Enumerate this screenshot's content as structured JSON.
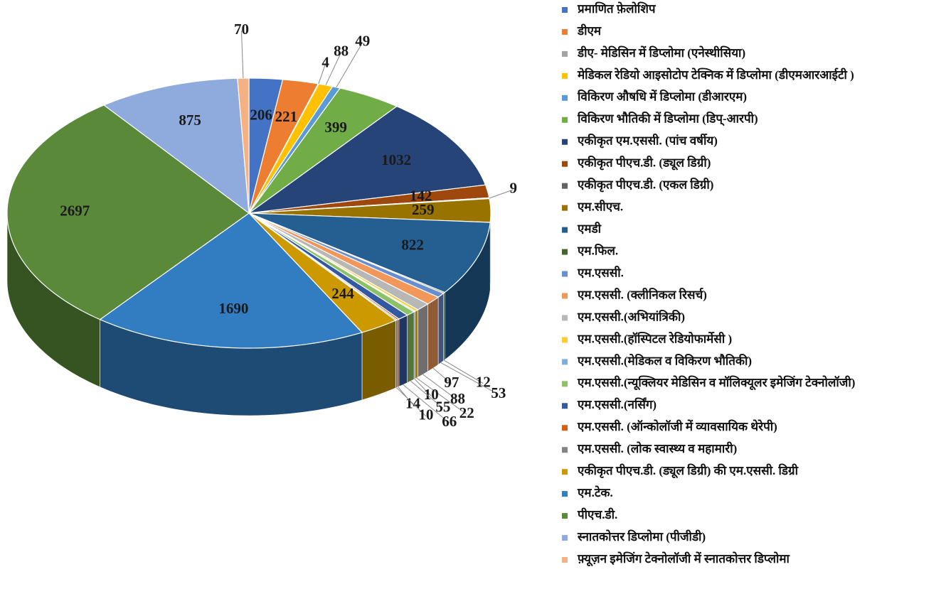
{
  "chart_data": {
    "type": "pie",
    "categories": [
      "प्रमाणित फ़ेलोशिप",
      "डीएम",
      "डीए- मेडिसिन में डिप्लोमा (एनेस्थीसिया)",
      "मेडिकल रेडियो आइसोटोप टेक्निक में डिप्लोमा (डीएमआरआईटी )",
      "विकिरण औषधि में डिप्लोमा (डीआरएम)",
      "विकिरण भौतिकी में डिप्लोमा (डिप्-आरपी)",
      "एकीकृत एम.एससी. (पांच वर्षीय)",
      "एकीकृत पीएच.डी. (ड्यूल डिग्री)",
      "एकीकृत पीएच.डी. (एकल डिग्री)",
      "एम.सीएच.",
      "एमडी",
      "एम.फिल.",
      "एम.एससी.",
      "एम.एससी. (क्लीनिकल रिसर्च)",
      "एम.एससी.(अभियांत्रिकी)",
      "एम.एससी.(हॉस्पिटल रेडियोफार्मेसी )",
      "एम.एससी.(मेडिकल व विकिरण भौतिकी)",
      "एम.एससी.(न्यूक्लियर मेडिसिन व मॉलिक्यूलर इमेजिंग टेक्नोलॉजी)",
      "एम.एससी.(नर्सिंग)",
      "एम.एससी. (ऑन्कोलॉजी में व्यावसायिक थेरेपी)",
      "एम.एससी. (लोक स्वास्थ्य व महामारी)",
      "एकीकृत पीएच.डी. (ड्यूल डिग्री) की एम.एससी. डिग्री",
      "एम.टेक.",
      "पीएच.डी.",
      "स्नातकोत्तर डिप्लोमा (पीजीडी)",
      "फ़्यूज़न इमेजिंग टेक्नोलॉजी में स्नातकोत्तर डिप्लोमा"
    ],
    "values": [
      206,
      221,
      4,
      88,
      49,
      399,
      1032,
      142,
      9,
      259,
      822,
      12,
      53,
      97,
      88,
      22,
      10,
      55,
      66,
      14,
      10,
      244,
      1690,
      2697,
      875,
      70
    ],
    "colors": [
      "#4472c4",
      "#ed7d31",
      "#a5a5a5",
      "#ffc000",
      "#5b9bd5",
      "#70ad47",
      "#264478",
      "#9e480e",
      "#636363",
      "#997300",
      "#255e91",
      "#43682b",
      "#698ed0",
      "#f1975a",
      "#b7b7b7",
      "#ffcd33",
      "#7cafdd",
      "#8cc168",
      "#335aa1",
      "#d26012",
      "#848484",
      "#cc9a00",
      "#327dc2",
      "#5a8a39",
      "#8faadc",
      "#f4b183"
    ],
    "legend": "right"
  }
}
